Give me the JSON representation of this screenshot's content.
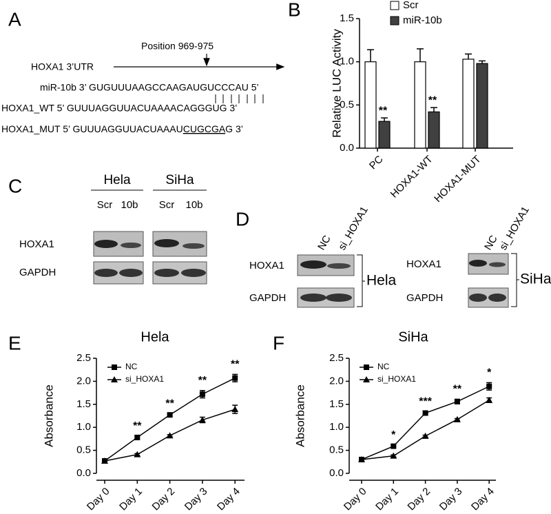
{
  "panels": [
    "A",
    "B",
    "C",
    "D",
    "E",
    "F"
  ],
  "panel_a": {
    "utr_label": "HOXA1 3’UTR",
    "position": "Position 969-975",
    "mir_line": "miR-10b 3’ GUGUUUAAGCCAAGAUGUCCCAU 5’",
    "wt_line": "HOXA1_WT  5’ GUUUAGGUUACUAAAACAGGGUG 3’",
    "mut_line": [
      "HOXA1_MUT  5’ GUUUAGGUUACUAAAU",
      "CUGCGA",
      "G 3’"
    ]
  },
  "panel_c": {
    "groups": [
      "Hela",
      "SiHa"
    ],
    "lanes": [
      "Scr",
      "10b",
      "Scr",
      "10b"
    ],
    "rows": [
      "HOXA1",
      "GAPDH"
    ]
  },
  "panel_d": {
    "lanes": [
      "NC",
      "si_HOXA1",
      "NC",
      "si_HOXA1"
    ],
    "rows": [
      "HOXA1",
      "GAPDH",
      "HOXA1",
      "GAPDH"
    ],
    "cells": [
      "Hela",
      "SiHa"
    ]
  },
  "chart_data": [
    {
      "type": "bar",
      "ylabel": "Relative LUC Activity",
      "categories": [
        "PC",
        "HOXA1-WT",
        "HOXA1-MUT"
      ],
      "series": [
        {
          "name": "Scr",
          "color": "#ffffff",
          "values": [
            1.0,
            1.0,
            1.03
          ],
          "errors": [
            0.14,
            0.15,
            0.06
          ]
        },
        {
          "name": "miR-10b",
          "color": "#404040",
          "values": [
            0.31,
            0.42,
            0.98
          ],
          "errors": [
            0.04,
            0.05,
            0.03
          ]
        }
      ],
      "annotations": [
        "**",
        "**",
        null
      ],
      "ylim": [
        0,
        1.5
      ],
      "yticks": [
        {
          "value": 0,
          "label": "0.0"
        },
        0.5,
        {
          "value": 1,
          "label": "1.0"
        },
        1.5
      ],
      "legend": "top"
    },
    {
      "type": "line",
      "title": "Hela",
      "ylabel": "Absorbance",
      "categories": [
        "Day 0",
        "Day 1",
        "Day 2",
        "Day 3",
        "Day 4"
      ],
      "series": [
        {
          "name": "NC",
          "color": "#000000",
          "marker": "square",
          "values": [
            0.27,
            0.78,
            1.27,
            1.72,
            2.07
          ],
          "errors": [
            0.02,
            0.03,
            0.03,
            0.08,
            0.08
          ]
        },
        {
          "name": "si_HOXA1",
          "color": "#000000",
          "marker": "triangle",
          "values": [
            0.27,
            0.41,
            0.82,
            1.16,
            1.39
          ],
          "errors": [
            0.02,
            0.02,
            0.02,
            0.06,
            0.09
          ]
        }
      ],
      "annotations": [
        null,
        "**",
        "**",
        "**",
        "**"
      ],
      "ylim": [
        0,
        2.5
      ],
      "yticks": [
        {
          "value": 0,
          "label": "0.0"
        },
        0.5,
        {
          "value": 1,
          "label": "1.0"
        },
        1.5,
        {
          "value": 2,
          "label": "2.0"
        },
        2.5
      ],
      "legend": "top-left"
    },
    {
      "type": "line",
      "title": "SiHa",
      "ylabel": "Absorbance",
      "categories": [
        "Day 0",
        "Day 1",
        "Day 2",
        "Day 3",
        "Day 4"
      ],
      "series": [
        {
          "name": "NC",
          "color": "#000000",
          "marker": "square",
          "values": [
            0.3,
            0.59,
            1.31,
            1.56,
            1.89
          ],
          "errors": [
            0.02,
            0.03,
            0.03,
            0.05,
            0.08
          ]
        },
        {
          "name": "si_HOXA1",
          "color": "#000000",
          "marker": "triangle",
          "values": [
            0.3,
            0.38,
            0.81,
            1.17,
            1.59
          ],
          "errors": [
            0.02,
            0.02,
            0.02,
            0.02,
            0.05
          ]
        }
      ],
      "annotations": [
        null,
        "*",
        "***",
        "**",
        "*"
      ],
      "ylim": [
        0,
        2.5
      ],
      "yticks": [
        {
          "value": 0,
          "label": "0.0"
        },
        0.5,
        {
          "value": 1,
          "label": "1.0"
        },
        1.5,
        {
          "value": 2,
          "label": "2.0"
        },
        2.5
      ],
      "legend": "top-left"
    }
  ]
}
